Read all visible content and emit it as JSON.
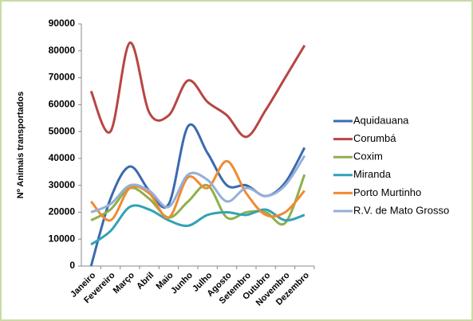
{
  "chart_data": {
    "type": "line",
    "y_label": "Nº Animais transportados",
    "categories": [
      "Janeiro",
      "Fevereiro",
      "Março",
      "Abril",
      "Maio",
      "Junho",
      "Julho",
      "Agosto",
      "Setembro",
      "Outubro",
      "Novembro",
      "Dezembro"
    ],
    "series": [
      {
        "name": "Aquidauana",
        "color": "#3a6aaf",
        "values": [
          0,
          25000,
          37000,
          28000,
          23000,
          52000,
          42000,
          30000,
          30000,
          26000,
          31000,
          44000
        ]
      },
      {
        "name": "Corumbá",
        "color": "#b84542",
        "values": [
          65000,
          50000,
          83000,
          57000,
          56000,
          69000,
          61000,
          56000,
          48000,
          58000,
          70000,
          82000
        ]
      },
      {
        "name": "Coxim",
        "color": "#8fb04a",
        "values": [
          17000,
          21000,
          29000,
          25000,
          18000,
          24000,
          30000,
          18000,
          20000,
          20000,
          16000,
          34000
        ]
      },
      {
        "name": "Miranda",
        "color": "#32a2b7",
        "values": [
          8000,
          13000,
          22000,
          21000,
          17000,
          15000,
          19000,
          20000,
          19000,
          21000,
          17000,
          19000
        ]
      },
      {
        "name": "Porto Murtinho",
        "color": "#f08a33",
        "values": [
          24000,
          17000,
          29000,
          27000,
          18000,
          33000,
          29000,
          39000,
          27000,
          19000,
          20000,
          28000
        ]
      },
      {
        "name": "R.V. de Mato Grosso",
        "color": "#96afd8",
        "values": [
          20000,
          23000,
          30000,
          28000,
          22000,
          34000,
          32000,
          24000,
          29000,
          26000,
          30000,
          41000
        ]
      }
    ],
    "ylim": [
      0,
      90000
    ],
    "yticks": [
      0,
      10000,
      20000,
      30000,
      40000,
      50000,
      60000,
      70000,
      80000,
      90000
    ],
    "grid": false,
    "legend": "right",
    "smooth": true
  }
}
